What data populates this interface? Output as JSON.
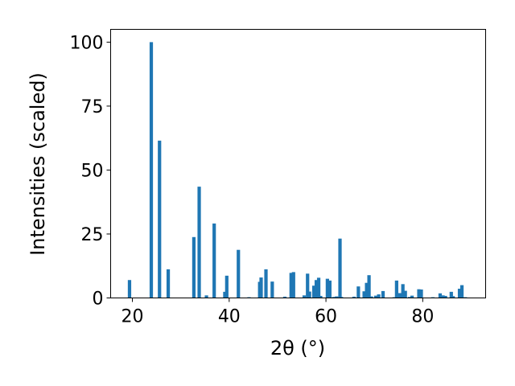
{
  "chart_data": {
    "type": "bar",
    "xlabel": "2θ (°)",
    "ylabel": "Intensities (scaled)",
    "xlim": [
      15.5,
      93
    ],
    "ylim": [
      0,
      105
    ],
    "grid": false,
    "xticks": [
      20,
      40,
      60,
      80
    ],
    "yticks": [
      0,
      25,
      50,
      75,
      100
    ],
    "bar_color": "#1f77b4",
    "x": [
      19.4,
      23.9,
      25.6,
      27.4,
      32.7,
      33.8,
      35.3,
      36.9,
      39.1,
      39.5,
      41.9,
      44.1,
      46.3,
      46.6,
      47.6,
      48.9,
      51.5,
      52.8,
      53.3,
      55.5,
      56.2,
      56.6,
      57.5,
      58.0,
      58.5,
      58.9,
      60.3,
      60.8,
      61.6,
      62.2,
      62.9,
      63.2,
      65.8,
      66.7,
      67.9,
      68.4,
      68.9,
      69.4,
      70.3,
      70.9,
      71.8,
      74.1,
      74.6,
      75.3,
      75.9,
      76.4,
      77.3,
      77.8,
      79.2,
      79.7,
      82.1,
      83.6,
      84.2,
      84.7,
      85.9,
      86.3,
      87.6,
      88.1,
      88.8
    ],
    "values": [
      7.0,
      100.0,
      61.5,
      11.2,
      23.8,
      43.5,
      1.0,
      29.1,
      2.4,
      8.7,
      18.8,
      0.3,
      6.3,
      8.0,
      11.2,
      6.4,
      0.5,
      9.8,
      10.1,
      1.0,
      9.5,
      2.5,
      4.8,
      7.0,
      7.9,
      0.8,
      7.5,
      6.8,
      0.4,
      0.6,
      23.2,
      0.4,
      0.5,
      4.5,
      2.6,
      5.9,
      8.9,
      0.6,
      0.9,
      1.4,
      2.7,
      0.3,
      6.8,
      1.9,
      5.4,
      2.8,
      0.4,
      0.9,
      3.4,
      3.3,
      0.3,
      1.8,
      1.0,
      0.8,
      2.4,
      0.7,
      3.6,
      5.0,
      0.3
    ]
  }
}
